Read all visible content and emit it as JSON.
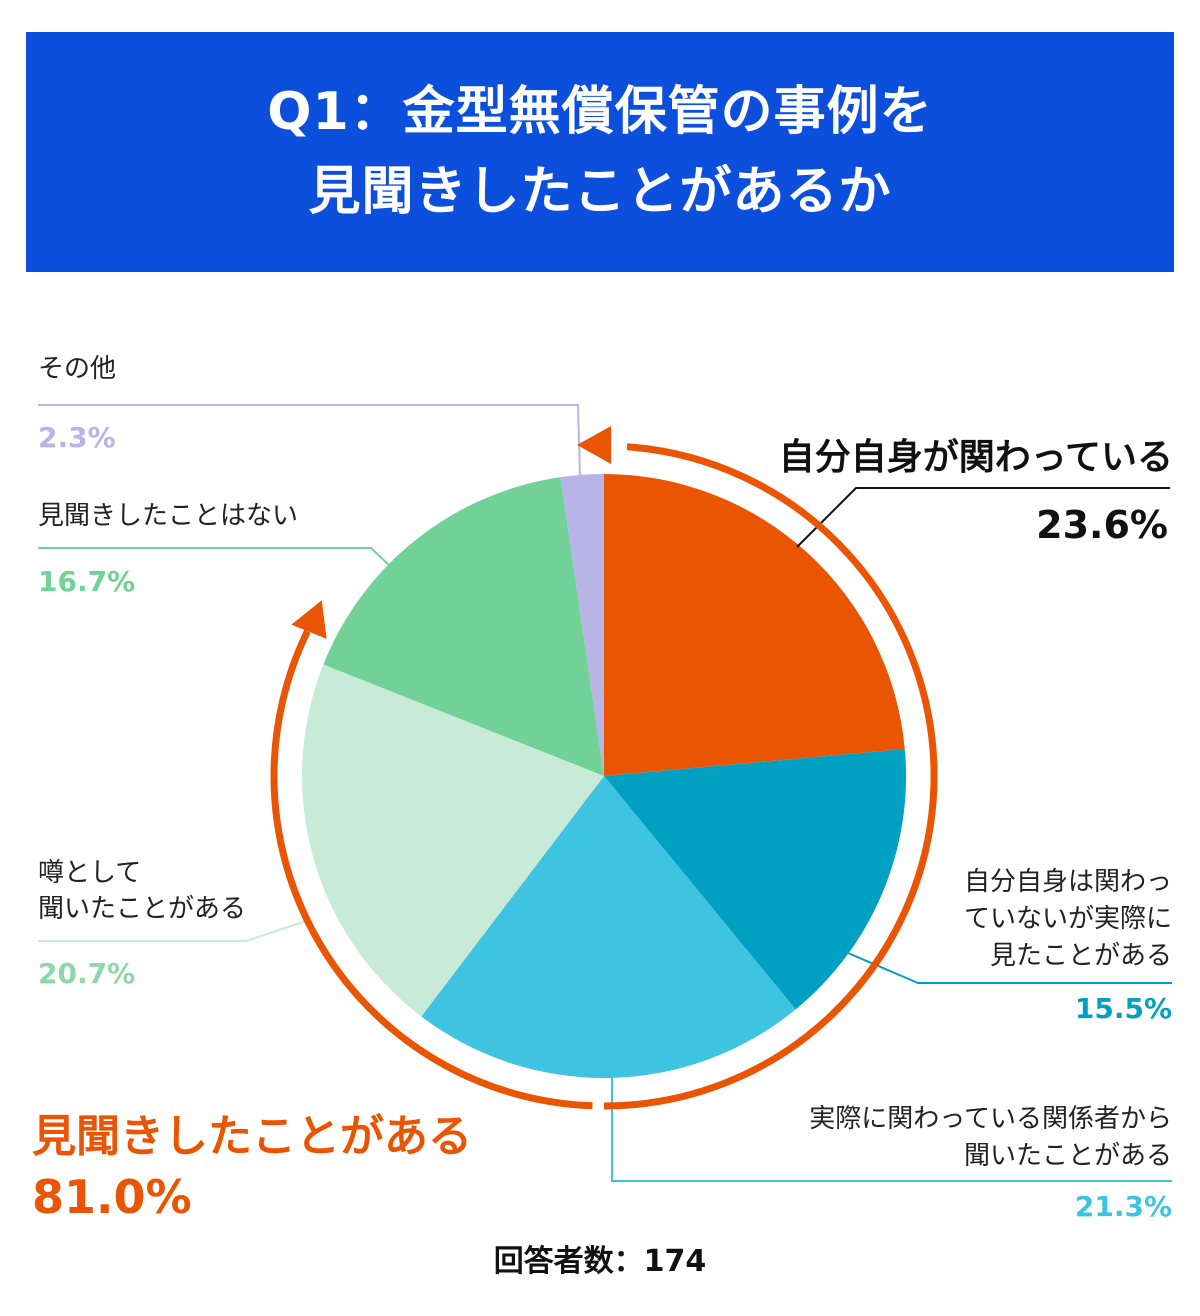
{
  "header": {
    "title_line1": "Q1：金型無償保管の事例を",
    "title_line2": "見聞きしたことがあるか"
  },
  "chart_data": {
    "type": "pie",
    "unit": "%",
    "slices": [
      {
        "label": "自分自身が関わっている",
        "value": 23.6,
        "display": "23.6%",
        "color": "#ea5504"
      },
      {
        "label": "自分自身は関わっていないが実際に見たことがある",
        "value": 15.5,
        "display": "15.5%",
        "color": "#00a0c3"
      },
      {
        "label": "実際に関わっている関係者から聞いたことがある",
        "value": 21.3,
        "display": "21.3%",
        "color": "#3ec3e0"
      },
      {
        "label": "噂として聞いたことがある",
        "value": 20.7,
        "display": "20.7%",
        "color": "#c8ead8"
      },
      {
        "label": "見聞きしたことはない",
        "value": 16.7,
        "display": "16.7%",
        "color": "#72d197"
      },
      {
        "label": "その他",
        "value": 2.3,
        "display": "2.3%",
        "color": "#b8b4e6"
      }
    ],
    "summary": {
      "label": "見聞きしたことがある",
      "value": 81.0,
      "display": "81.0%",
      "color": "#ea5504"
    }
  },
  "labels": {
    "s0": "自分自身が関わっている",
    "s1_line1": "自分自身は関わっ",
    "s1_line2": "ていないが実際に",
    "s1_line3": "見たことがある",
    "s2_line1": "実際に関わっている関係者から",
    "s2_line2": "聞いたことがある",
    "s3_line1": "噂として",
    "s3_line2": "聞いたことがある",
    "s4": "見聞きしたことはない",
    "s5": "その他"
  },
  "footer": {
    "respondents": "回答者数：174"
  }
}
